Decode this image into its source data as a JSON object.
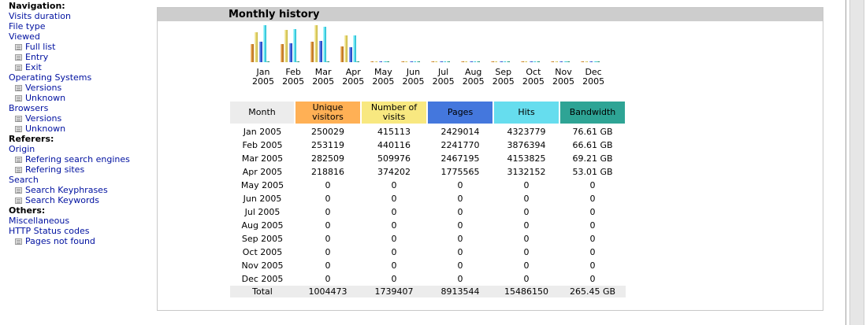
{
  "nav": [
    {
      "text": "Navigation:",
      "type": "head"
    },
    {
      "text": "Visits duration",
      "type": "link"
    },
    {
      "text": "File type",
      "type": "link"
    },
    {
      "text": "Viewed",
      "type": "link"
    },
    {
      "text": "Full list",
      "type": "sub"
    },
    {
      "text": "Entry",
      "type": "sub"
    },
    {
      "text": "Exit",
      "type": "sub"
    },
    {
      "text": "Operating Systems",
      "type": "link"
    },
    {
      "text": "Versions",
      "type": "sub"
    },
    {
      "text": "Unknown",
      "type": "sub"
    },
    {
      "text": "Browsers",
      "type": "link"
    },
    {
      "text": "Versions",
      "type": "sub"
    },
    {
      "text": "Unknown",
      "type": "sub"
    },
    {
      "text": "Referers:",
      "type": "head"
    },
    {
      "text": "Origin",
      "type": "link"
    },
    {
      "text": "Refering search engines",
      "type": "sub"
    },
    {
      "text": "Refering sites",
      "type": "sub"
    },
    {
      "text": "Search",
      "type": "link"
    },
    {
      "text": "Search Keyphrases",
      "type": "sub"
    },
    {
      "text": "Search Keywords",
      "type": "sub"
    },
    {
      "text": "Others:",
      "type": "head"
    },
    {
      "text": "Miscellaneous",
      "type": "link"
    },
    {
      "text": "HTTP Status codes",
      "type": "link"
    },
    {
      "text": "Pages not found",
      "type": "sub"
    }
  ],
  "panel": {
    "title": "Monthly history"
  },
  "table": {
    "headers": [
      {
        "label": "Month",
        "color": "#ececec"
      },
      {
        "label": "Unique visitors",
        "color": "#ffb055"
      },
      {
        "label": "Number of visits",
        "color": "#f8e880"
      },
      {
        "label": "Pages",
        "color": "#4477dd"
      },
      {
        "label": "Hits",
        "color": "#66ddee"
      },
      {
        "label": "Bandwidth",
        "color": "#2ea495"
      }
    ],
    "rows": [
      [
        "Jan 2005",
        "250029",
        "415113",
        "2429014",
        "4323779",
        "76.61 GB"
      ],
      [
        "Feb 2005",
        "253119",
        "440116",
        "2241770",
        "3876394",
        "66.61 GB"
      ],
      [
        "Mar 2005",
        "282509",
        "509976",
        "2467195",
        "4153825",
        "69.21 GB"
      ],
      [
        "Apr 2005",
        "218816",
        "374202",
        "1775565",
        "3132152",
        "53.01 GB"
      ],
      [
        "May 2005",
        "0",
        "0",
        "0",
        "0",
        "0"
      ],
      [
        "Jun 2005",
        "0",
        "0",
        "0",
        "0",
        "0"
      ],
      [
        "Jul 2005",
        "0",
        "0",
        "0",
        "0",
        "0"
      ],
      [
        "Aug 2005",
        "0",
        "0",
        "0",
        "0",
        "0"
      ],
      [
        "Sep 2005",
        "0",
        "0",
        "0",
        "0",
        "0"
      ],
      [
        "Oct 2005",
        "0",
        "0",
        "0",
        "0",
        "0"
      ],
      [
        "Nov 2005",
        "0",
        "0",
        "0",
        "0",
        "0"
      ],
      [
        "Dec 2005",
        "0",
        "0",
        "0",
        "0",
        "0"
      ]
    ],
    "total": [
      "Total",
      "1004473",
      "1739407",
      "8913544",
      "15486150",
      "265.45 GB"
    ]
  },
  "chart_data": {
    "type": "bar",
    "categories": [
      {
        "month": "Jan",
        "year": "2005"
      },
      {
        "month": "Feb",
        "year": "2005"
      },
      {
        "month": "Mar",
        "year": "2005"
      },
      {
        "month": "Apr",
        "year": "2005"
      },
      {
        "month": "May",
        "year": "2005"
      },
      {
        "month": "Jun",
        "year": "2005"
      },
      {
        "month": "Jul",
        "year": "2005"
      },
      {
        "month": "Aug",
        "year": "2005"
      },
      {
        "month": "Sep",
        "year": "2005"
      },
      {
        "month": "Oct",
        "year": "2005"
      },
      {
        "month": "Nov",
        "year": "2005"
      },
      {
        "month": "Dec",
        "year": "2005"
      }
    ],
    "groups": [
      {
        "key": "visitors_visits",
        "cls": [
          "vis",
          "visits"
        ],
        "values": [
          [
            250029,
            415113
          ],
          [
            253119,
            440116
          ],
          [
            282509,
            509976
          ],
          [
            218816,
            374202
          ],
          [
            0,
            0
          ],
          [
            0,
            0
          ],
          [
            0,
            0
          ],
          [
            0,
            0
          ],
          [
            0,
            0
          ],
          [
            0,
            0
          ],
          [
            0,
            0
          ],
          [
            0,
            0
          ]
        ]
      },
      {
        "key": "pages_hits_bw",
        "cls": [
          "pages",
          "hits",
          "bw"
        ],
        "values": [
          [
            2429014,
            4323779,
            76.61
          ],
          [
            2241770,
            3876394,
            66.61
          ],
          [
            2467195,
            4153825,
            69.21
          ],
          [
            1775565,
            3132152,
            53.01
          ],
          [
            0,
            0,
            0
          ],
          [
            0,
            0,
            0
          ],
          [
            0,
            0,
            0
          ],
          [
            0,
            0,
            0
          ],
          [
            0,
            0,
            0
          ],
          [
            0,
            0,
            0
          ],
          [
            0,
            0,
            0
          ],
          [
            0,
            0,
            0
          ]
        ]
      }
    ]
  }
}
